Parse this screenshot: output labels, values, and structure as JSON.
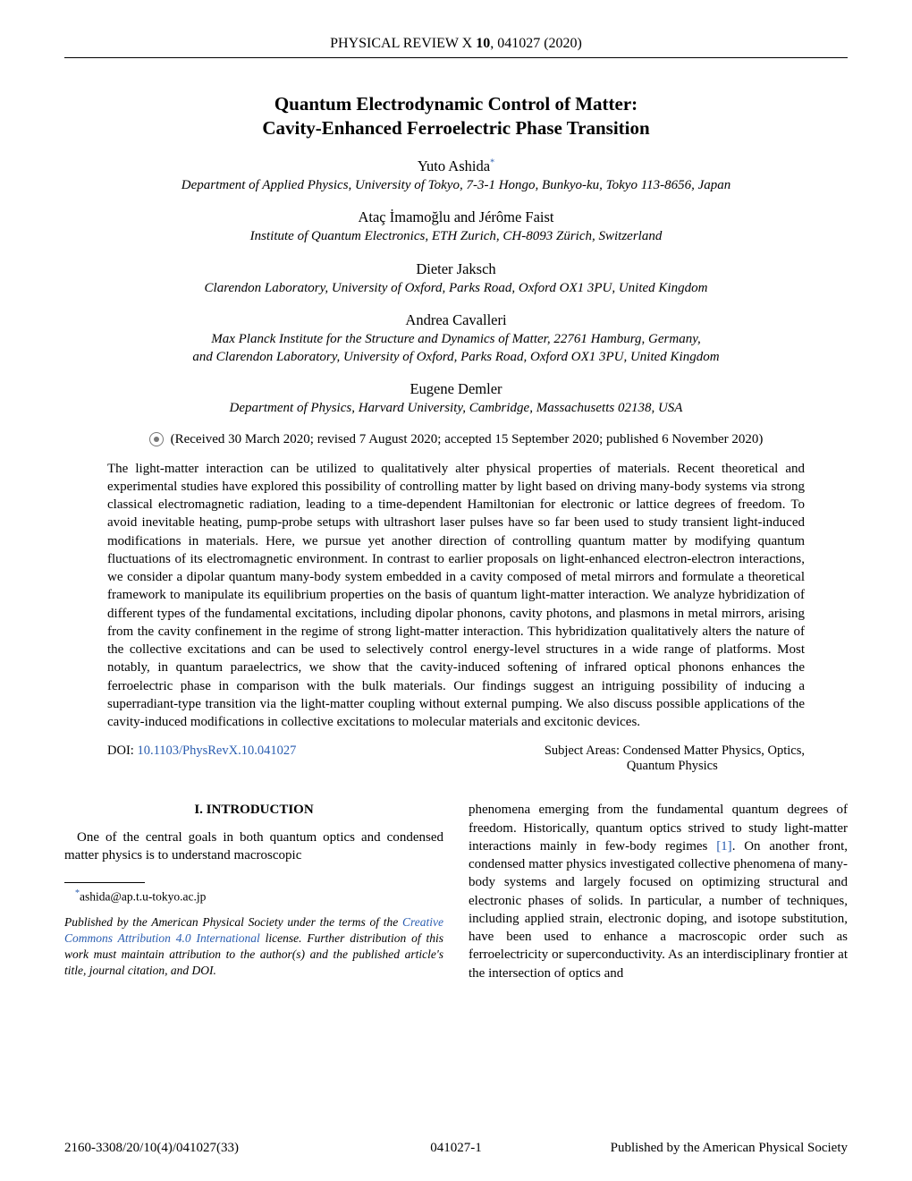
{
  "journal": {
    "name_prefix": "PHYSICAL REVIEW X ",
    "volume": "10",
    "article_suffix": ", 041027 (2020)"
  },
  "title": {
    "line1": "Quantum Electrodynamic Control of Matter:",
    "line2": "Cavity-Enhanced Ferroelectric Phase Transition"
  },
  "authors": [
    {
      "name": "Yuto Ashida",
      "sup": "*",
      "affiliation_lines": [
        "Department of Applied Physics, University of Tokyo, 7-3-1 Hongo, Bunkyo-ku, Tokyo 113-8656, Japan"
      ]
    },
    {
      "name": "Ataç İmamoğlu and Jérôme Faist",
      "sup": "",
      "affiliation_lines": [
        "Institute of Quantum Electronics, ETH Zurich, CH-8093 Zürich, Switzerland"
      ]
    },
    {
      "name": "Dieter Jaksch",
      "sup": "",
      "affiliation_lines": [
        "Clarendon Laboratory, University of Oxford, Parks Road, Oxford OX1 3PU, United Kingdom"
      ]
    },
    {
      "name": "Andrea Cavalleri",
      "sup": "",
      "affiliation_lines": [
        "Max Planck Institute for the Structure and Dynamics of Matter, 22761 Hamburg, Germany,",
        "and Clarendon Laboratory, University of Oxford, Parks Road, Oxford OX1 3PU, United Kingdom"
      ]
    },
    {
      "name": "Eugene Demler",
      "sup": "",
      "affiliation_lines": [
        "Department of Physics, Harvard University, Cambridge, Massachusetts 02138, USA"
      ]
    }
  ],
  "dates": "(Received 30 March 2020; revised 7 August 2020; accepted 15 September 2020; published 6 November 2020)",
  "abstract": "The light-matter interaction can be utilized to qualitatively alter physical properties of materials. Recent theoretical and experimental studies have explored this possibility of controlling matter by light based on driving many-body systems via strong classical electromagnetic radiation, leading to a time-dependent Hamiltonian for electronic or lattice degrees of freedom. To avoid inevitable heating, pump-probe setups with ultrashort laser pulses have so far been used to study transient light-induced modifications in materials. Here, we pursue yet another direction of controlling quantum matter by modifying quantum fluctuations of its electromagnetic environment. In contrast to earlier proposals on light-enhanced electron-electron interactions, we consider a dipolar quantum many-body system embedded in a cavity composed of metal mirrors and formulate a theoretical framework to manipulate its equilibrium properties on the basis of quantum light-matter interaction. We analyze hybridization of different types of the fundamental excitations, including dipolar phonons, cavity photons, and plasmons in metal mirrors, arising from the cavity confinement in the regime of strong light-matter interaction. This hybridization qualitatively alters the nature of the collective excitations and can be used to selectively control energy-level structures in a wide range of platforms. Most notably, in quantum paraelectrics, we show that the cavity-induced softening of infrared optical phonons enhances the ferroelectric phase in comparison with the bulk materials. Our findings suggest an intriguing possibility of inducing a superradiant-type transition via the light-matter coupling without external pumping. We also discuss possible applications of the cavity-induced modifications in collective excitations to molecular materials and excitonic devices.",
  "doi": {
    "label": "DOI: ",
    "link": "10.1103/PhysRevX.10.041027"
  },
  "subjects": {
    "label": "Subject Areas:",
    "line1": "Condensed Matter Physics, Optics,",
    "line2": "Quantum Physics"
  },
  "section1": {
    "heading": "I. INTRODUCTION"
  },
  "col_left": {
    "para1": "One of the central goals in both quantum optics and condensed matter physics is to understand macroscopic"
  },
  "footnote": {
    "marker": "*",
    "email": "ashida@ap.t.u-tokyo.ac.jp"
  },
  "license": {
    "pre": "Published by the American Physical Society under the terms of the ",
    "link": "Creative Commons Attribution 4.0 International",
    "post": " license. Further distribution of this work must maintain attribution to the author(s) and the published article's title, journal citation, and DOI."
  },
  "col_right": {
    "para1_pre": "phenomena emerging from the fundamental quantum degrees of freedom. Historically, quantum optics strived to study light-matter interactions mainly in few-body regimes ",
    "ref": "[1]",
    "para1_post": ". On another front, condensed matter physics investigated collective phenomena of many-body systems and largely focused on optimizing structural and electronic phases of solids. In particular, a number of techniques, including applied strain, electronic doping, and isotope substitution, have been used to enhance a macroscopic order such as ferroelectricity or superconductivity. As an interdisciplinary frontier at the intersection of optics and"
  },
  "footer": {
    "left": "2160-3308/20/10(4)/041027(33)",
    "center": "041027-1",
    "right": "Published by the American Physical Society"
  }
}
